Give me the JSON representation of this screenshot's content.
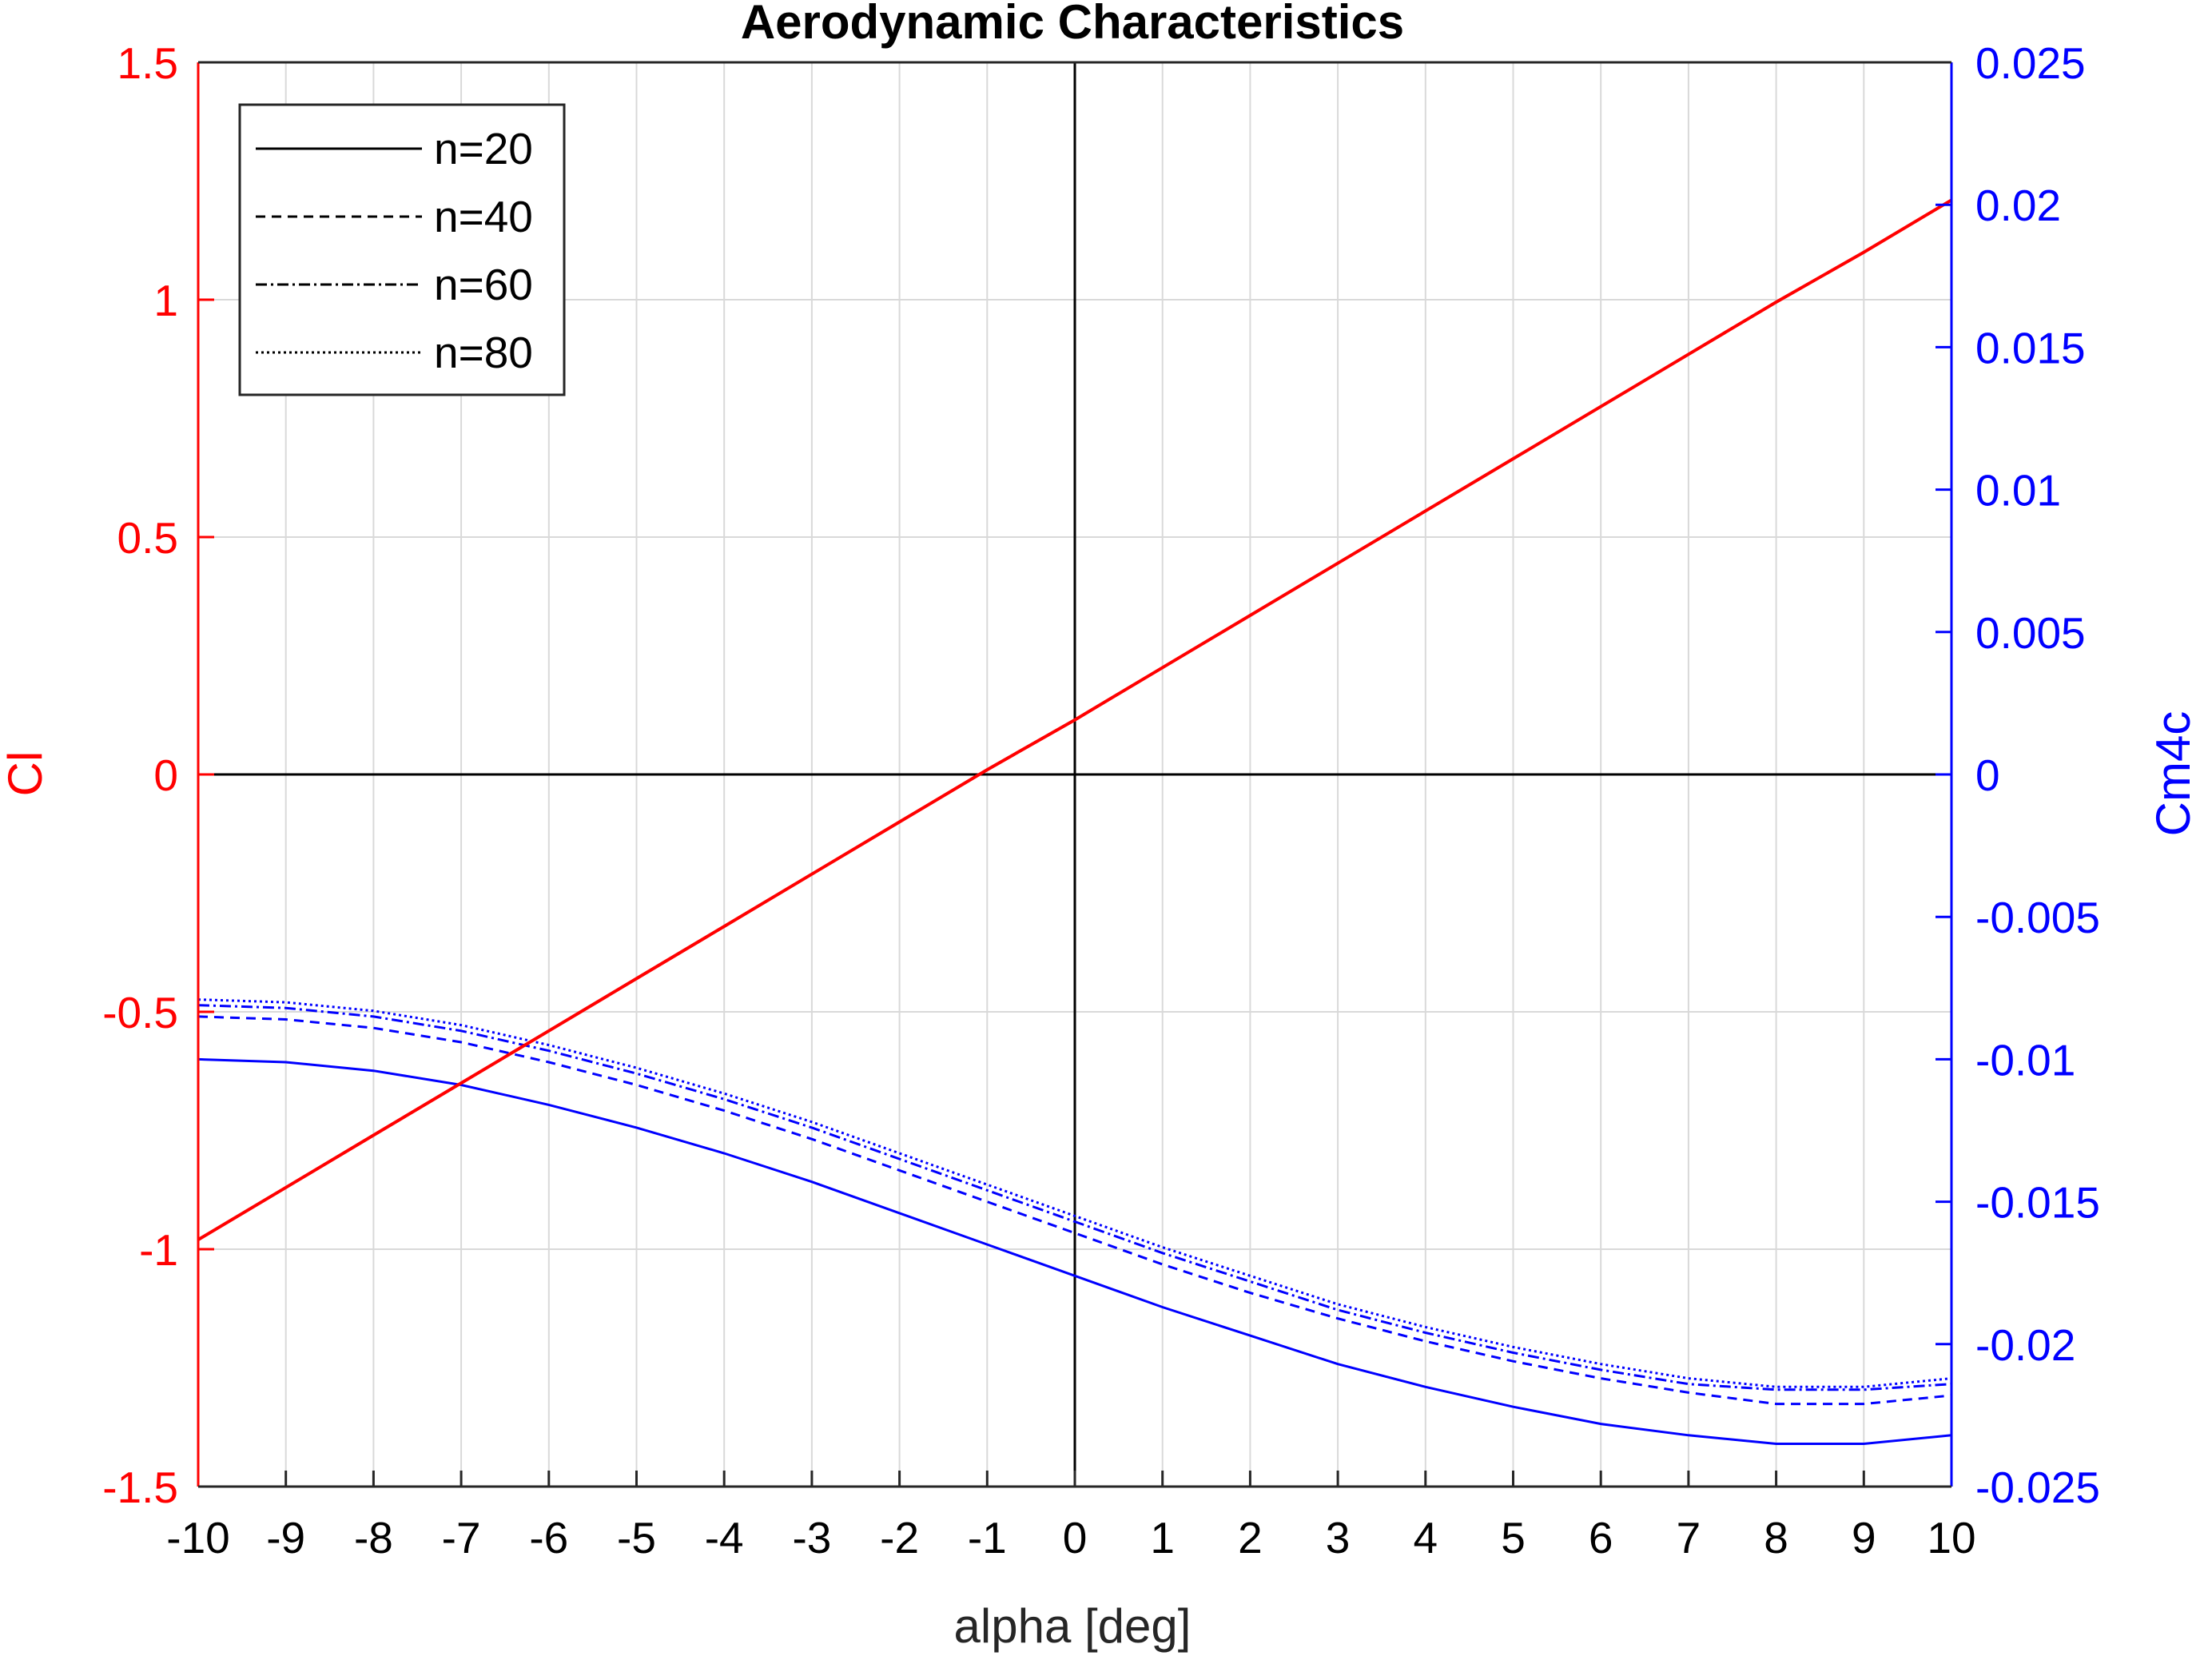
{
  "chart_data": {
    "type": "line",
    "title": "Aerodynamic Characteristics",
    "xlabel": "alpha [deg]",
    "ylabel_left": "Cl",
    "ylabel_right": "Cm4c",
    "xlim": [
      -10,
      10
    ],
    "ylim_left": [
      -1.5,
      1.5
    ],
    "ylim_right": [
      -0.025,
      0.025
    ],
    "x_ticks": [
      -10,
      -9,
      -8,
      -7,
      -6,
      -5,
      -4,
      -3,
      -2,
      -1,
      0,
      1,
      2,
      3,
      4,
      5,
      6,
      7,
      8,
      9,
      10
    ],
    "y_left_ticks": [
      "-1.5",
      "-1",
      "-0.5",
      "0",
      "0.5",
      "1",
      "1.5"
    ],
    "y_right_ticks": [
      "-0.025",
      "-0.02",
      "-0.015",
      "-0.01",
      "-0.005",
      "0",
      "0.005",
      "0.01",
      "0.015",
      "0.02",
      "0.025"
    ],
    "grid": true,
    "legend_position": "top-left",
    "colors": {
      "cl": "#ff0000",
      "cm": "#0000ff",
      "grid": "#d9d9d9",
      "zero_lines": "#000000"
    },
    "x": [
      -10,
      -9,
      -8,
      -7,
      -6,
      -5,
      -4,
      -3,
      -2,
      -1,
      0,
      1,
      2,
      3,
      4,
      5,
      6,
      7,
      8,
      9,
      10
    ],
    "cl_series": [
      {
        "name": "n=20",
        "axis": "left",
        "values": [
          -0.98,
          -0.87,
          -0.76,
          -0.65,
          -0.54,
          -0.43,
          -0.32,
          -0.21,
          -0.1,
          0.01,
          0.115,
          0.225,
          0.335,
          0.445,
          0.555,
          0.665,
          0.775,
          0.885,
          0.995,
          1.1,
          1.21
        ]
      }
    ],
    "cm_series": [
      {
        "name": "n=20",
        "axis": "right",
        "style": "solid",
        "values": [
          -0.01,
          -0.0101,
          -0.0104,
          -0.0109,
          -0.0116,
          -0.0124,
          -0.0133,
          -0.0143,
          -0.0154,
          -0.0165,
          -0.0176,
          -0.0187,
          -0.0197,
          -0.0207,
          -0.0215,
          -0.0222,
          -0.0228,
          -0.0232,
          -0.0235,
          -0.0235,
          -0.0232
        ]
      },
      {
        "name": "n=40",
        "axis": "right",
        "style": "dashed",
        "values": [
          -0.0085,
          -0.0086,
          -0.0089,
          -0.0094,
          -0.0101,
          -0.0109,
          -0.0118,
          -0.0128,
          -0.0139,
          -0.015,
          -0.0161,
          -0.0172,
          -0.0182,
          -0.0191,
          -0.0199,
          -0.0206,
          -0.0212,
          -0.0217,
          -0.0221,
          -0.0221,
          -0.0218
        ]
      },
      {
        "name": "n=60",
        "axis": "right",
        "style": "dashdot",
        "values": [
          -0.0081,
          -0.0082,
          -0.0085,
          -0.009,
          -0.0097,
          -0.0105,
          -0.0114,
          -0.0124,
          -0.0135,
          -0.0146,
          -0.0157,
          -0.0168,
          -0.0178,
          -0.0188,
          -0.0196,
          -0.0203,
          -0.0209,
          -0.0214,
          -0.0216,
          -0.0216,
          -0.0214
        ]
      },
      {
        "name": "n=80",
        "axis": "right",
        "style": "dotted",
        "values": [
          -0.0079,
          -0.008,
          -0.0083,
          -0.0088,
          -0.0095,
          -0.0103,
          -0.0112,
          -0.0122,
          -0.0133,
          -0.0144,
          -0.0155,
          -0.0166,
          -0.0176,
          -0.0186,
          -0.0194,
          -0.0201,
          -0.0207,
          -0.0212,
          -0.0215,
          -0.0215,
          -0.0212
        ]
      }
    ],
    "legend": [
      "n=20",
      "n=40",
      "n=60",
      "n=80"
    ]
  }
}
